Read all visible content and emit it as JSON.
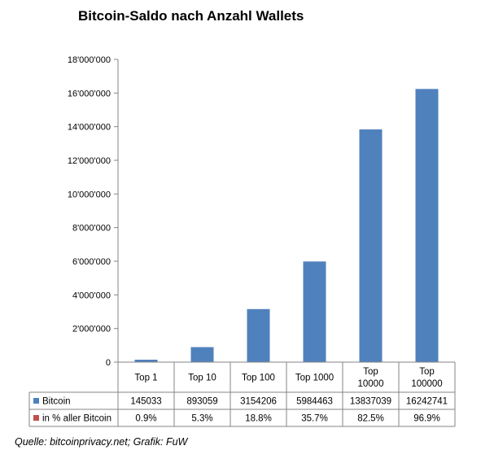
{
  "chart_data": {
    "type": "bar",
    "title": "Bitcoin-Saldo nach Anzahl Wallets",
    "xlabel": "",
    "ylabel": "",
    "ylim": [
      0,
      18000000
    ],
    "y_ticks": [
      "0",
      "2'000'000",
      "4'000'000",
      "6'000'000",
      "8'000'000",
      "10'000'000",
      "12'000'000",
      "14'000'000",
      "16'000'000",
      "18'000'000"
    ],
    "grid": false,
    "legend": "table-left",
    "categories": [
      [
        "Top 1"
      ],
      [
        "Top 10"
      ],
      [
        "Top 100"
      ],
      [
        "Top 1000"
      ],
      [
        "Top",
        "10000"
      ],
      [
        "Top",
        "100000"
      ]
    ],
    "series": [
      {
        "name": "Bitcoin",
        "color": "#4f81bd",
        "values": [
          145033,
          893059,
          3154206,
          5984463,
          13837039,
          16242741
        ],
        "labels": [
          "145033",
          "893059",
          "3154206",
          "5984463",
          "13837039",
          "16242741"
        ]
      },
      {
        "name": "in % aller Bitcoin",
        "color": "#c0504d",
        "values": [
          0.9,
          5.3,
          18.8,
          35.7,
          82.5,
          96.9
        ],
        "labels": [
          "0.9%",
          "5.3%",
          "18.8%",
          "35.7%",
          "82.5%",
          "96.9%"
        ]
      }
    ]
  },
  "source": "Quelle: bitcoinprivacy.net; Grafik: FuW"
}
